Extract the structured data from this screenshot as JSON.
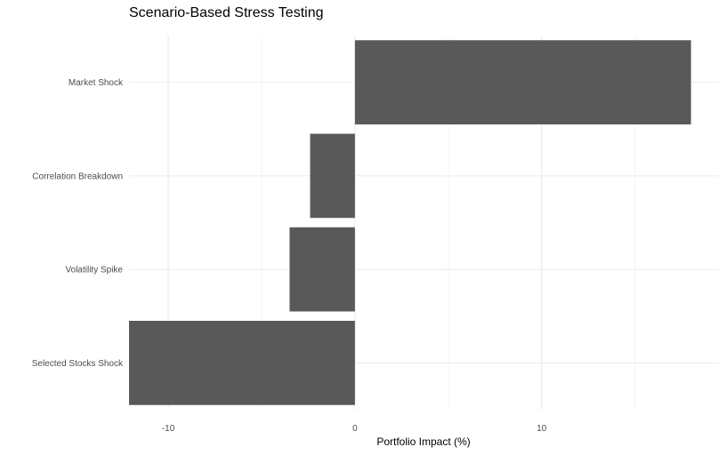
{
  "chart_data": {
    "type": "bar",
    "orientation": "horizontal",
    "title": "Scenario-Based Stress Testing",
    "xlabel": "Portfolio Impact (%)",
    "ylabel": "",
    "categories": [
      "Market Shock",
      "Correlation Breakdown",
      "Volatility Spike",
      "Selected Stocks Shock"
    ],
    "values": [
      18.0,
      -2.4,
      -3.5,
      -12.1
    ],
    "xlim": [
      -12.1,
      19.5
    ],
    "x_ticks": [
      -10,
      0,
      10
    ],
    "x_tick_labels": [
      "-10",
      "0",
      "10"
    ],
    "grid": true,
    "legend": "none",
    "colors": {
      "bar": "#595959",
      "grid_major": "#ebebeb",
      "grid_minor": "#f5f5f5"
    }
  }
}
